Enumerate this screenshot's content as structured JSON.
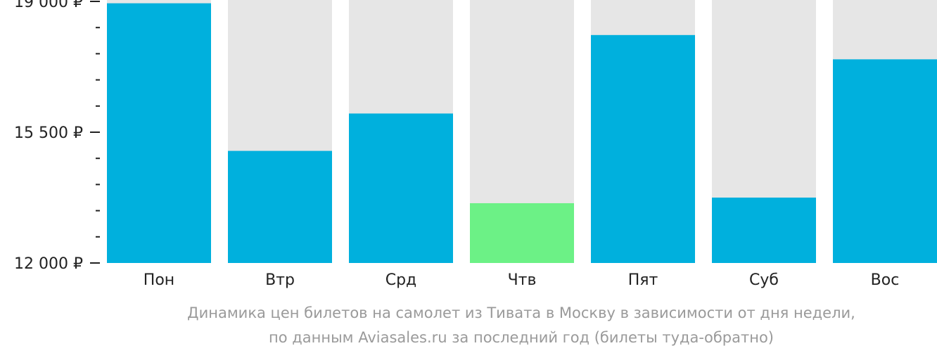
{
  "chart_data": {
    "type": "bar",
    "categories": [
      "Пон",
      "Втр",
      "Срд",
      "Чтв",
      "Пят",
      "Суб",
      "Вос"
    ],
    "values": [
      18950,
      15000,
      16000,
      13600,
      18100,
      13750,
      17450
    ],
    "ylim": [
      12000,
      19000
    ],
    "yticks": [
      {
        "value": 19000,
        "label": "19 000 ₽"
      },
      {
        "value": 15500,
        "label": "15 500 ₽"
      },
      {
        "value": 12000,
        "label": "12 000 ₽"
      }
    ],
    "minor_tick_step": 700,
    "highlight_index": 3,
    "colors": {
      "bar": "#00b0dd",
      "highlight": "#6cf186",
      "track": "#e6e6e6",
      "axis": "#222222"
    }
  },
  "caption": {
    "line1": "Динамика цен билетов на самолет из Тивата в Москву в зависимости от дня недели,",
    "line2": "по данным Aviasales.ru за последний год (билеты туда-обратно)"
  }
}
